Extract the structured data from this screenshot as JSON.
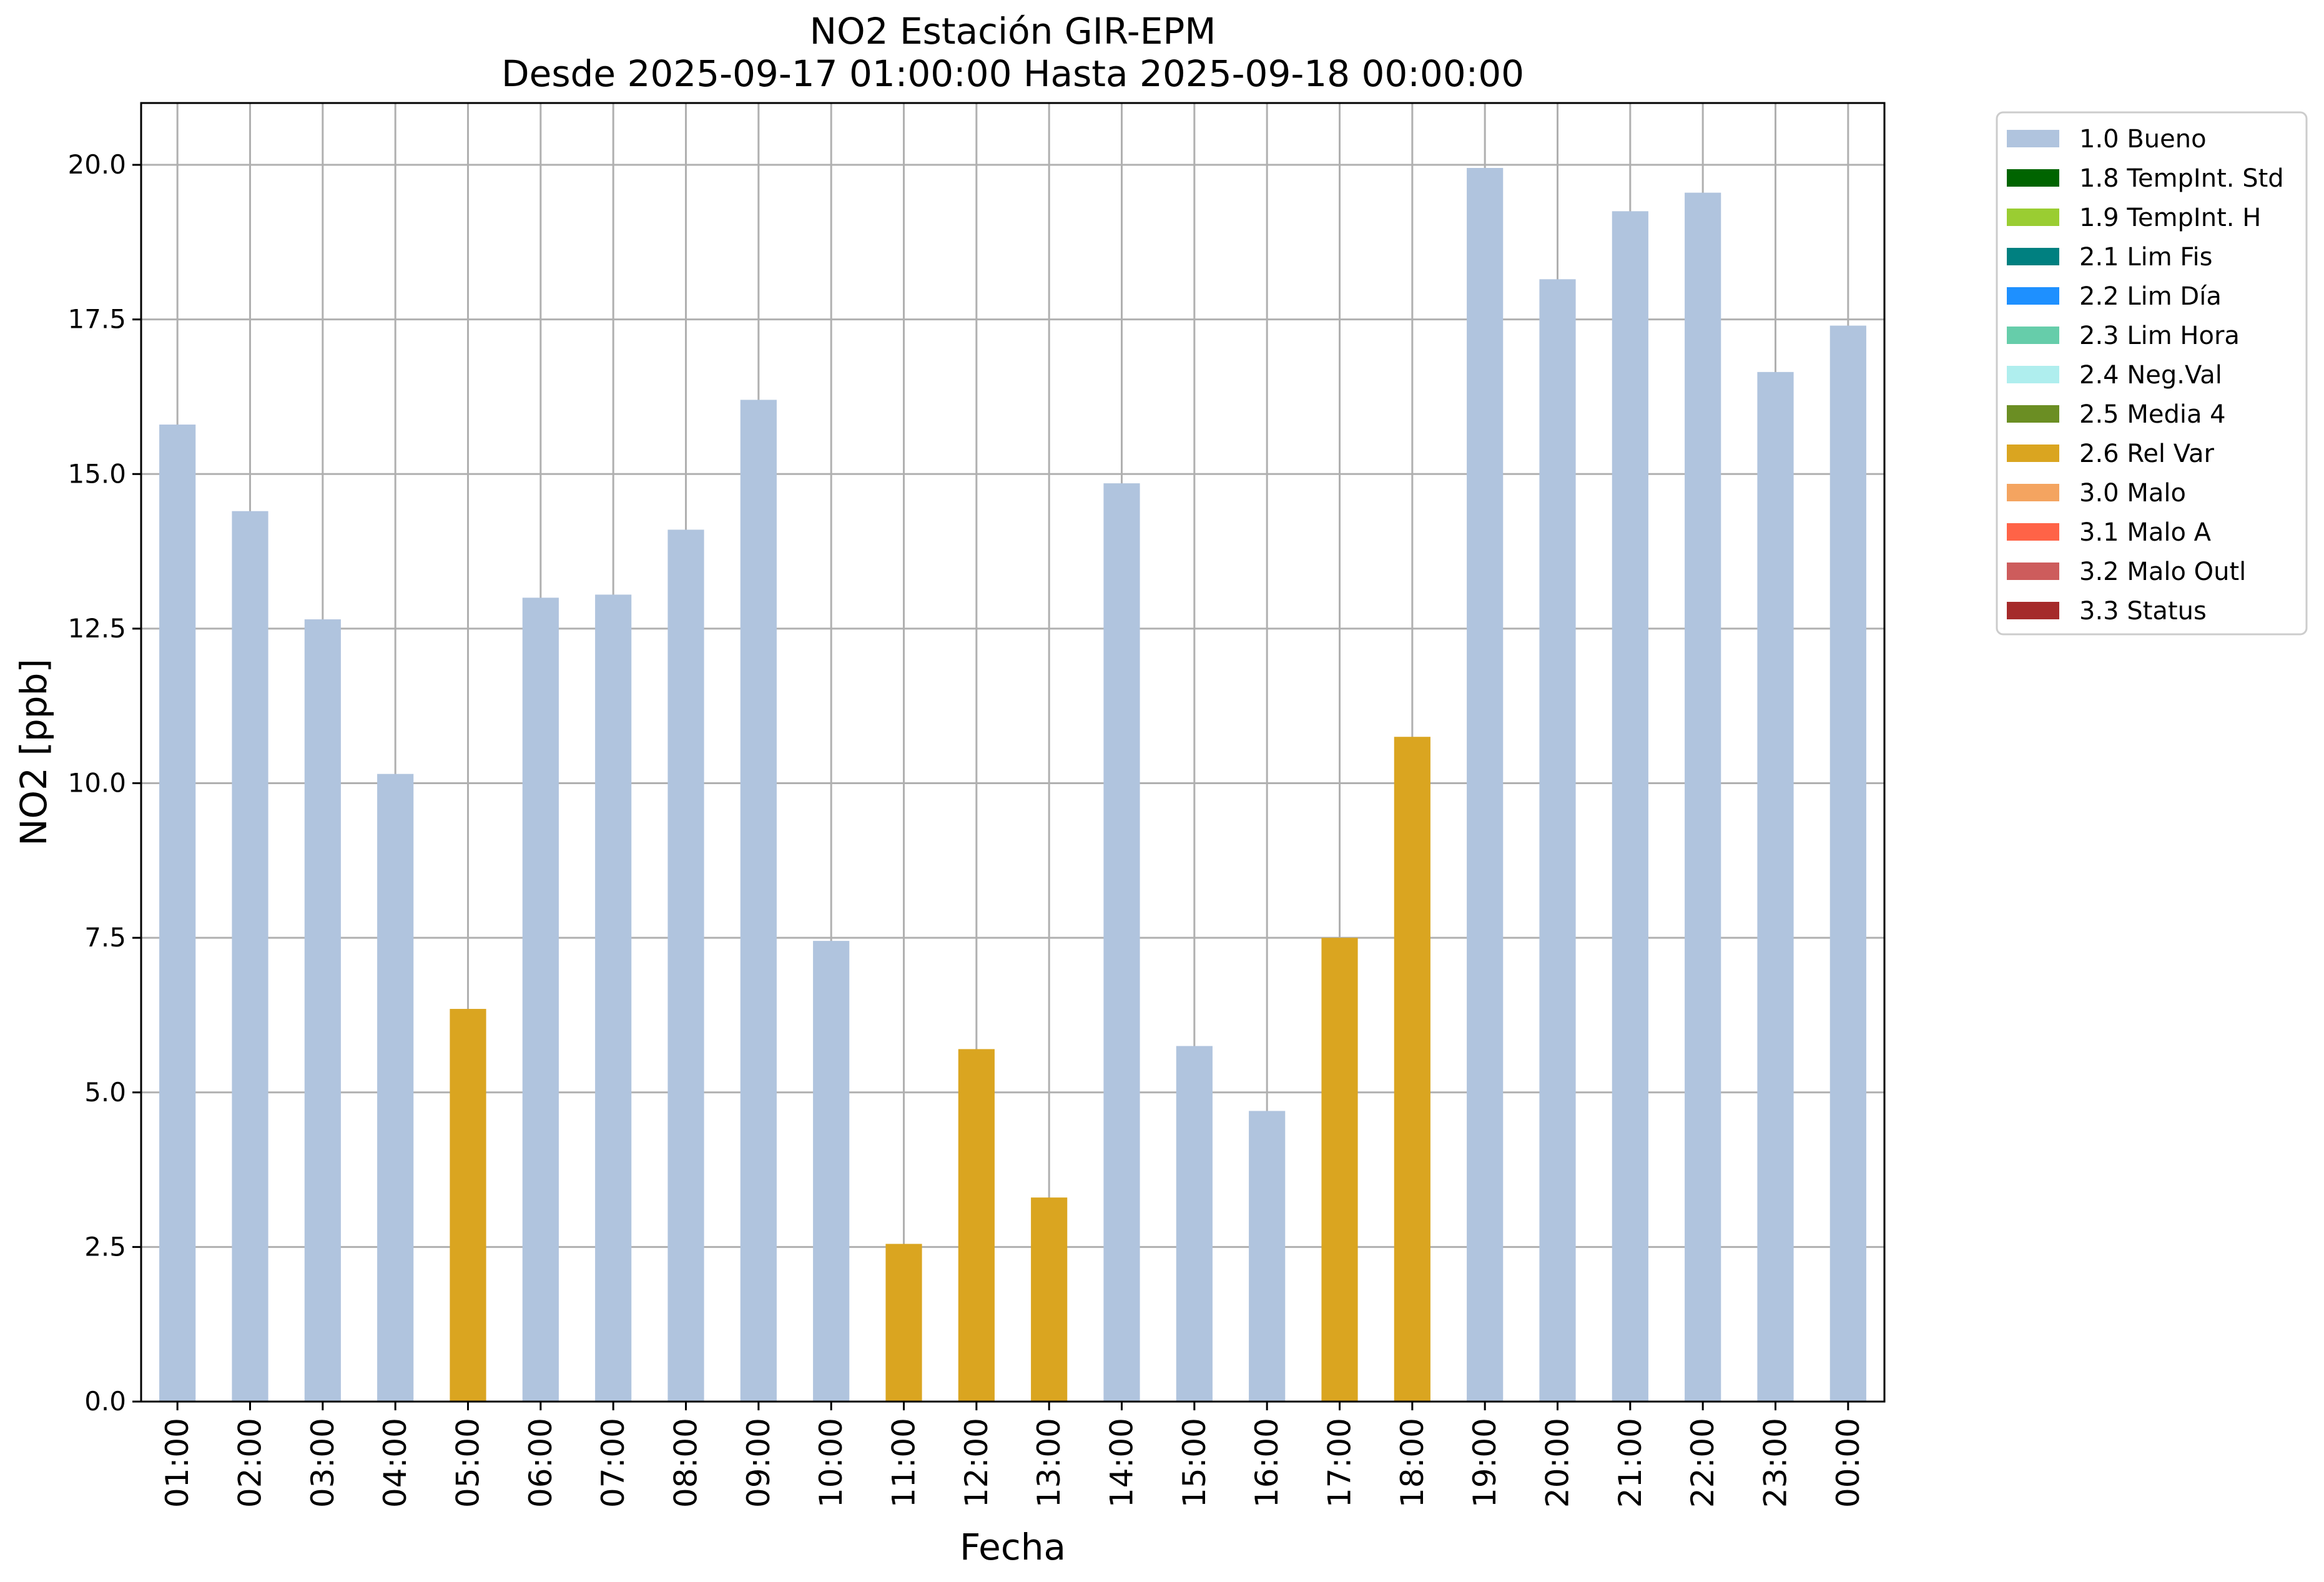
{
  "chart_data": {
    "type": "bar",
    "title_line1": "NO2 Estación GIR-EPM",
    "title_line2": "Desde 2025-09-17 01:00:00 Hasta 2025-09-18 00:00:00",
    "xlabel": "Fecha",
    "ylabel": "NO2 [ppb]",
    "ylim": [
      0,
      21
    ],
    "yticks": [
      "0.0",
      "2.5",
      "5.0",
      "7.5",
      "10.0",
      "12.5",
      "15.0",
      "17.5",
      "20.0"
    ],
    "grid": true,
    "legend_position": "outside top-right",
    "categories": [
      "01:00",
      "02:00",
      "03:00",
      "04:00",
      "05:00",
      "06:00",
      "07:00",
      "08:00",
      "09:00",
      "10:00",
      "11:00",
      "12:00",
      "13:00",
      "14:00",
      "15:00",
      "16:00",
      "17:00",
      "18:00",
      "19:00",
      "20:00",
      "21:00",
      "22:00",
      "23:00",
      "00:00"
    ],
    "values": [
      15.8,
      14.4,
      12.65,
      10.15,
      6.35,
      13.0,
      13.05,
      14.1,
      16.2,
      7.45,
      2.55,
      5.7,
      3.3,
      14.85,
      5.75,
      4.7,
      7.5,
      10.75,
      19.95,
      18.15,
      19.25,
      19.55,
      16.65,
      17.4
    ],
    "flags": [
      "1.0 Bueno",
      "1.0 Bueno",
      "1.0 Bueno",
      "1.0 Bueno",
      "2.6 Rel Var",
      "1.0 Bueno",
      "1.0 Bueno",
      "1.0 Bueno",
      "1.0 Bueno",
      "1.0 Bueno",
      "2.6 Rel Var",
      "2.6 Rel Var",
      "2.6 Rel Var",
      "1.0 Bueno",
      "1.0 Bueno",
      "1.0 Bueno",
      "2.6 Rel Var",
      "2.6 Rel Var",
      "1.0 Bueno",
      "1.0 Bueno",
      "1.0 Bueno",
      "1.0 Bueno",
      "1.0 Bueno",
      "1.0 Bueno"
    ],
    "legend": [
      {
        "label": "1.0 Bueno",
        "color": "#b0c4de"
      },
      {
        "label": "1.8 TempInt. Std",
        "color": "#006400"
      },
      {
        "label": "1.9 TempInt. H",
        "color": "#9acd32"
      },
      {
        "label": "2.1 Lim Fis",
        "color": "#008080"
      },
      {
        "label": "2.2 Lim Día",
        "color": "#1e90ff"
      },
      {
        "label": "2.3 Lim Hora",
        "color": "#66cdaa"
      },
      {
        "label": "2.4 Neg.Val",
        "color": "#afeeee"
      },
      {
        "label": "2.5 Media 4",
        "color": "#6b8e23"
      },
      {
        "label": "2.6 Rel Var",
        "color": "#daa520"
      },
      {
        "label": "3.0 Malo",
        "color": "#f4a460"
      },
      {
        "label": "3.1 Malo A",
        "color": "#ff6347"
      },
      {
        "label": "3.2 Malo Outl",
        "color": "#cd5c5c"
      },
      {
        "label": "3.3 Status",
        "color": "#a52a2a"
      }
    ]
  }
}
